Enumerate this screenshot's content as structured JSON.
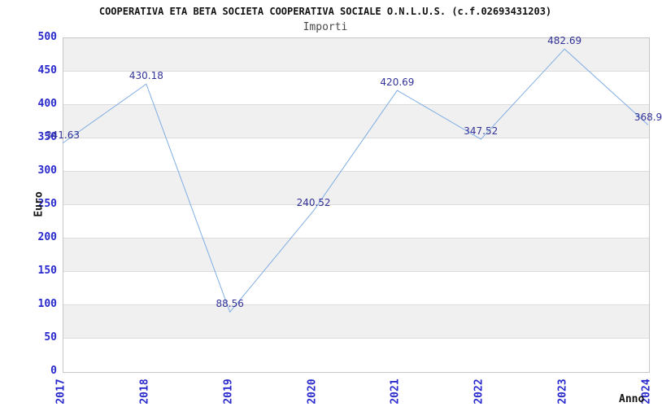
{
  "chart_data": {
    "type": "line",
    "title": "COOPERATIVA ETA BETA SOCIETA COOPERATIVA SOCIALE O.N.L.U.S. (c.f.02693431203)",
    "subtitle": "Importi",
    "xlabel": "Anno",
    "ylabel": "Euro",
    "x": [
      "2017",
      "2018",
      "2019",
      "2020",
      "2021",
      "2022",
      "2023",
      "2024"
    ],
    "values": [
      341.63,
      430.18,
      88.56,
      240.52,
      420.69,
      347.52,
      482.69,
      368.9
    ],
    "point_labels": [
      "341.63",
      "430.18",
      "88.56",
      "240.52",
      "420.69",
      "347.52",
      "482.69",
      "368.9"
    ],
    "ylim": [
      0,
      500
    ],
    "ytick_step": 50,
    "yticks": [
      "500",
      "450",
      "400",
      "350",
      "300",
      "250",
      "200",
      "150",
      "100",
      "50",
      "0"
    ],
    "grid": "horizontal-alternating-bands",
    "legend": "none"
  },
  "colors": {
    "line": "#7fade3",
    "value_label": "#333399",
    "axis_label": "#2828cc",
    "band_gray": "#f0f0f0",
    "band_white": "#ffffff",
    "gridline": "#dcdcdc",
    "plot_border": "#c6c6c6",
    "title_text": "#111111",
    "subtitle_text": "#4a4a4a",
    "axis_title_text": "#111111",
    "background": "#ffffff"
  }
}
